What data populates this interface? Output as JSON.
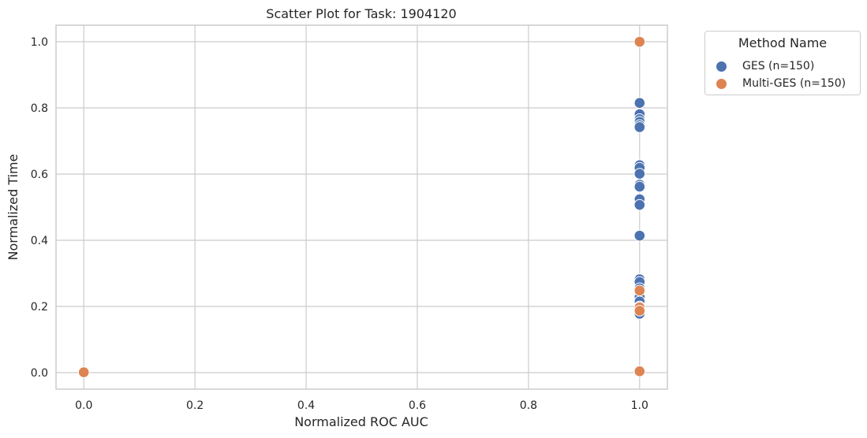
{
  "chart_data": {
    "type": "scatter",
    "title": "Scatter Plot for Task: 1904120",
    "xlabel": "Normalized ROC AUC",
    "ylabel": "Normalized Time",
    "xlim": [
      -0.05,
      1.05
    ],
    "ylim": [
      -0.05,
      1.05
    ],
    "xticks": [
      "0.0",
      "0.2",
      "0.4",
      "0.6",
      "0.8",
      "1.0"
    ],
    "yticks": [
      "0.0",
      "0.2",
      "0.4",
      "0.6",
      "0.8",
      "1.0"
    ],
    "grid": true,
    "legend": {
      "title": "Method Name",
      "placement": "outside-top-right"
    },
    "series": [
      {
        "name": "GES (n=150)",
        "color": "#4c72b0",
        "points": [
          [
            1.0,
            0.815
          ],
          [
            1.0,
            0.781
          ],
          [
            1.0,
            0.766
          ],
          [
            1.0,
            0.758
          ],
          [
            1.0,
            0.748
          ],
          [
            1.0,
            0.742
          ],
          [
            1.0,
            0.627
          ],
          [
            1.0,
            0.619
          ],
          [
            1.0,
            0.601
          ],
          [
            1.0,
            0.568
          ],
          [
            1.0,
            0.562
          ],
          [
            1.0,
            0.524
          ],
          [
            1.0,
            0.507
          ],
          [
            1.0,
            0.414
          ],
          [
            1.0,
            0.282
          ],
          [
            1.0,
            0.274
          ],
          [
            1.0,
            0.255
          ],
          [
            1.0,
            0.24
          ],
          [
            1.0,
            0.228
          ],
          [
            1.0,
            0.215
          ],
          [
            1.0,
            0.2
          ],
          [
            1.0,
            0.188
          ],
          [
            1.0,
            0.178
          ],
          [
            1.0,
            0.004
          ],
          [
            0.0,
            0.001
          ]
        ]
      },
      {
        "name": "Multi-GES (n=150)",
        "color": "#dd8452",
        "points": [
          [
            1.0,
            1.0
          ],
          [
            1.0,
            0.248
          ],
          [
            1.0,
            0.197
          ],
          [
            1.0,
            0.187
          ],
          [
            1.0,
            0.004
          ],
          [
            0.0,
            0.001
          ]
        ]
      }
    ]
  }
}
